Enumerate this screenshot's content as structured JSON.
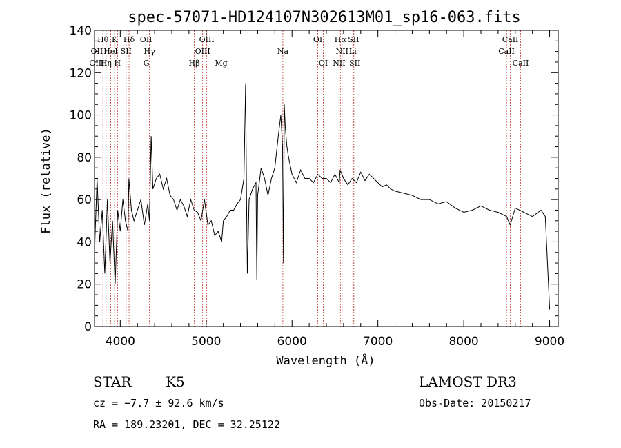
{
  "chart_data": {
    "type": "line",
    "title": "spec-57071-HD124107N302613M01_sp16-063.fits",
    "xlabel": "Wavelength (Å)",
    "ylabel": "Flux (relative)",
    "xlim": [
      3700,
      9100
    ],
    "ylim": [
      0,
      140
    ],
    "xticks": [
      4000,
      5000,
      6000,
      7000,
      8000,
      9000
    ],
    "yticks": [
      0,
      20,
      40,
      60,
      80,
      100,
      120,
      140
    ],
    "grid": false,
    "series": [
      {
        "x": [
          3700,
          3730,
          3760,
          3790,
          3820,
          3850,
          3880,
          3910,
          3940,
          3970,
          4000,
          4030,
          4060,
          4090,
          4100,
          4130,
          4160,
          4200,
          4240,
          4280,
          4320,
          4340,
          4360,
          4380,
          4420,
          4460,
          4500,
          4540,
          4580,
          4620,
          4660,
          4700,
          4740,
          4780,
          4820,
          4860,
          4900,
          4940,
          4980,
          5020,
          5060,
          5100,
          5140,
          5180,
          5200,
          5240,
          5280,
          5320,
          5360,
          5400,
          5440,
          5460,
          5470,
          5480,
          5500,
          5540,
          5580,
          5590,
          5600,
          5640,
          5680,
          5720,
          5760,
          5800,
          5840,
          5870,
          5890,
          5900,
          5910,
          5920,
          5940,
          5960,
          6000,
          6050,
          6100,
          6150,
          6200,
          6250,
          6300,
          6350,
          6400,
          6450,
          6500,
          6550,
          6560,
          6600,
          6650,
          6700,
          6750,
          6800,
          6850,
          6900,
          6950,
          7000,
          7050,
          7100,
          7150,
          7200,
          7300,
          7400,
          7500,
          7600,
          7700,
          7800,
          7900,
          8000,
          8100,
          8200,
          8300,
          8400,
          8500,
          8540,
          8600,
          8700,
          8800,
          8900,
          8950,
          9000
        ],
        "values": [
          35,
          70,
          40,
          55,
          25,
          60,
          30,
          50,
          20,
          55,
          45,
          60,
          50,
          45,
          70,
          55,
          50,
          55,
          60,
          48,
          58,
          50,
          90,
          65,
          70,
          72,
          65,
          70,
          62,
          60,
          55,
          60,
          57,
          52,
          60,
          55,
          54,
          50,
          60,
          48,
          50,
          43,
          45,
          40,
          50,
          52,
          55,
          55,
          58,
          60,
          70,
          115,
          60,
          25,
          60,
          65,
          68,
          22,
          62,
          75,
          70,
          62,
          70,
          75,
          90,
          100,
          85,
          30,
          105,
          95,
          85,
          80,
          72,
          68,
          74,
          70,
          70,
          68,
          72,
          70,
          70,
          68,
          72,
          68,
          74,
          70,
          67,
          70,
          68,
          73,
          69,
          72,
          70,
          68,
          66,
          67,
          65,
          64,
          63,
          62,
          60,
          60,
          58,
          59,
          56,
          54,
          55,
          57,
          55,
          54,
          52,
          48,
          56,
          54,
          52,
          55,
          52,
          8
        ]
      }
    ],
    "lines": [
      {
        "name": "Hθ",
        "wavelength": 3798,
        "row": 0
      },
      {
        "name": "K",
        "wavelength": 3934,
        "row": 0
      },
      {
        "name": "Hδ",
        "wavelength": 4102,
        "row": 0
      },
      {
        "name": "OII",
        "wavelength": 4300,
        "row": 0
      },
      {
        "name": "OIII",
        "wavelength": 5007,
        "row": 0
      },
      {
        "name": "OI",
        "wavelength": 6300,
        "row": 0
      },
      {
        "name": "Hα",
        "wavelength": 6563,
        "row": 0
      },
      {
        "name": "SII",
        "wavelength": 6716,
        "row": 0
      },
      {
        "name": "CaII",
        "wavelength": 8542,
        "row": 0
      },
      {
        "name": "OII",
        "wavelength": 3727,
        "row": 1
      },
      {
        "name": "HeI",
        "wavelength": 3889,
        "row": 1
      },
      {
        "name": "SII",
        "wavelength": 4068,
        "row": 1
      },
      {
        "name": "Hγ",
        "wavelength": 4340,
        "row": 1
      },
      {
        "name": "OIII",
        "wavelength": 4959,
        "row": 1
      },
      {
        "name": "Na",
        "wavelength": 5893,
        "row": 1
      },
      {
        "name": "NII",
        "wavelength": 6583,
        "row": 1
      },
      {
        "name": "Li",
        "wavelength": 6708,
        "row": 1
      },
      {
        "name": "CaII",
        "wavelength": 8498,
        "row": 1
      },
      {
        "name": "OIII",
        "wavelength": 3727,
        "row": 2
      },
      {
        "name": "Hη",
        "wavelength": 3835,
        "row": 2
      },
      {
        "name": "H",
        "wavelength": 3968,
        "row": 2
      },
      {
        "name": "G",
        "wavelength": 4304,
        "row": 2
      },
      {
        "name": "Hβ",
        "wavelength": 4861,
        "row": 2
      },
      {
        "name": "Mg",
        "wavelength": 5175,
        "row": 2
      },
      {
        "name": "OI",
        "wavelength": 6364,
        "row": 2
      },
      {
        "name": "NII",
        "wavelength": 6548,
        "row": 2
      },
      {
        "name": "SII",
        "wavelength": 6731,
        "row": 2
      },
      {
        "name": "CaII",
        "wavelength": 8662,
        "row": 2
      }
    ]
  },
  "info": {
    "object_class": "STAR",
    "subclass": "K5",
    "survey": "LAMOST DR3",
    "redshift": "cz = −7.7 ± 92.6 km/s",
    "obs_date": "Obs-Date: 20150217",
    "coords": "RA = 189.23201, DEC =  32.25122"
  }
}
